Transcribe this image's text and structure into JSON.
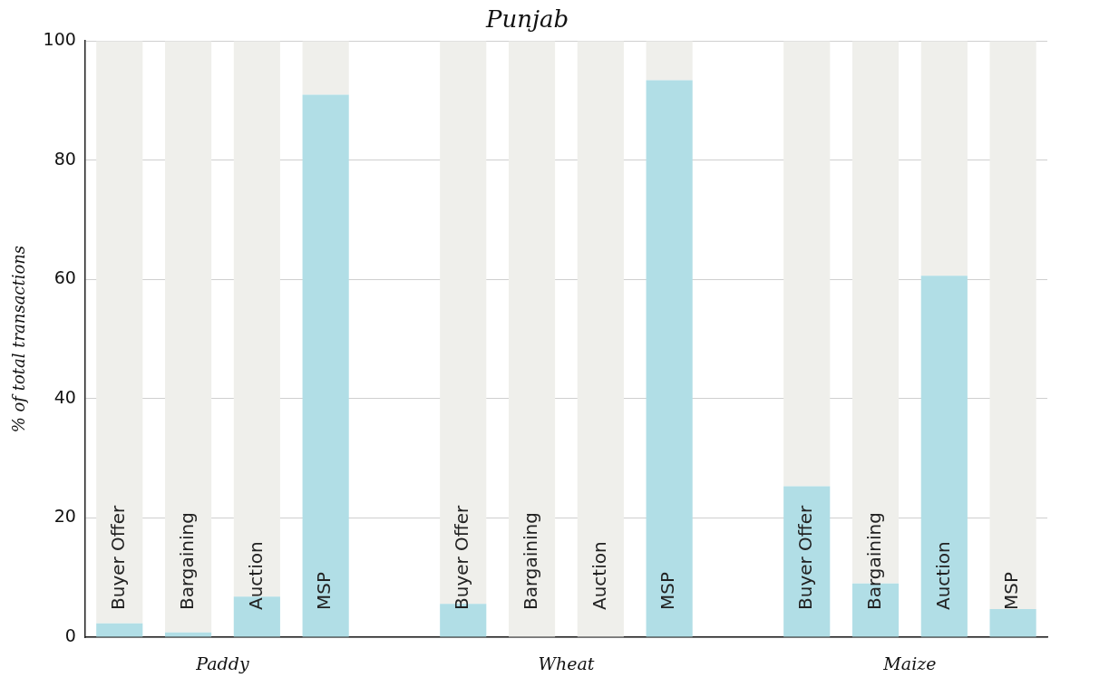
{
  "chart_data": {
    "type": "bar",
    "title": "Punjab",
    "ylabel": "% of total transactions",
    "categories": [
      "Buyer Offer",
      "Bargaining",
      "Auction",
      "MSP",
      null,
      "Buyer Offer",
      "Bargaining",
      "Auction",
      "MSP",
      null,
      "Buyer Offer",
      "Bargaining",
      "Auction",
      "MSP"
    ],
    "stacked": true,
    "series": [
      {
        "color": "#b1dee6",
        "values": [
          2.3,
          0.8,
          6.8,
          91,
          null,
          5.6,
          0,
          0,
          93.4,
          null,
          25.3,
          9,
          60.6,
          4.7
        ]
      },
      {
        "color": "#efefeb",
        "values": [
          97.7,
          99.2,
          93.2,
          9,
          null,
          94.4,
          100,
          100,
          6.6,
          null,
          74.7,
          91,
          39.4,
          95.3
        ]
      }
    ],
    "annotations": [
      "Paddy",
      "Wheat",
      "Maize"
    ],
    "ylim": [
      0,
      100
    ],
    "yticks": [
      0,
      20,
      40,
      60,
      80,
      100
    ],
    "grid": "y",
    "legend": false
  }
}
